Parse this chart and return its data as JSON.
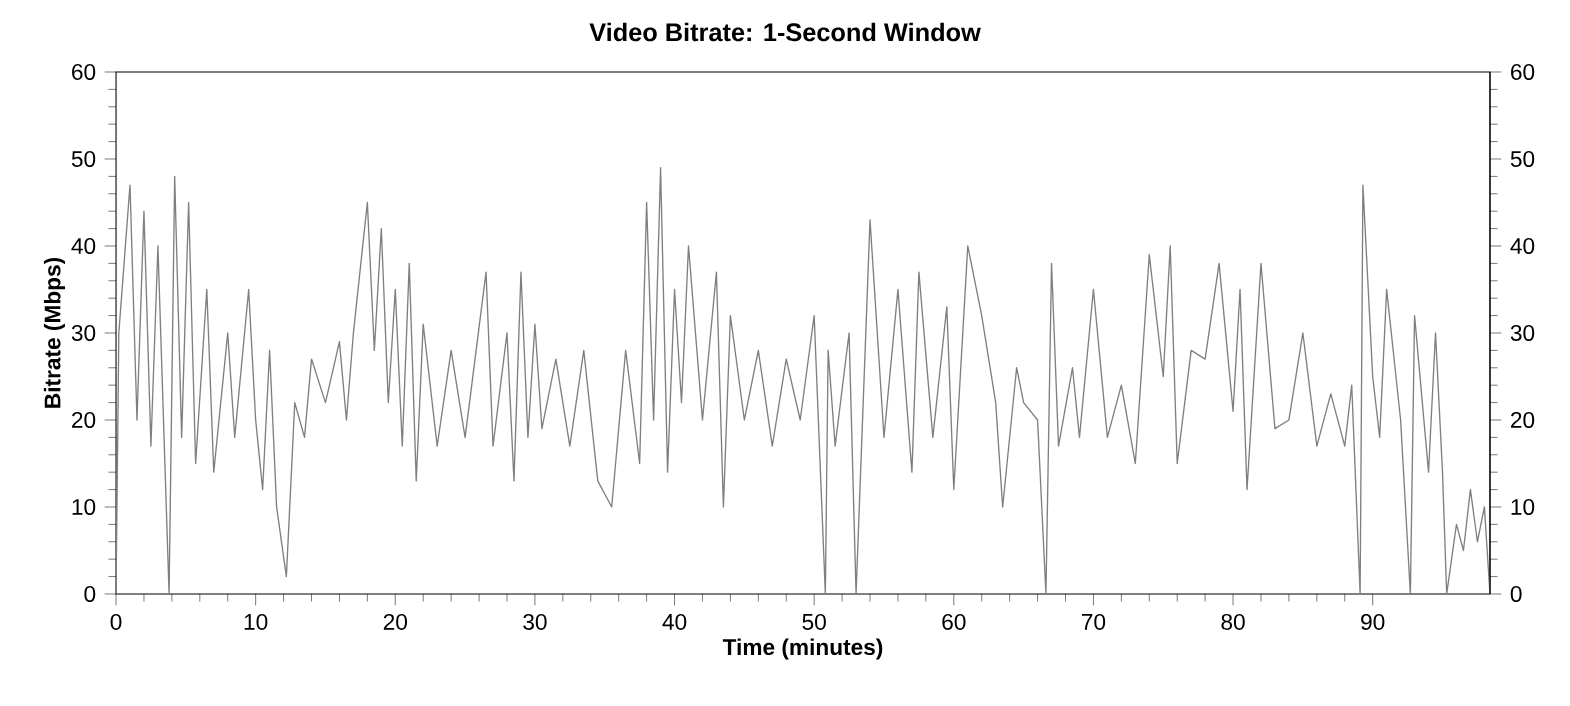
{
  "chart_data": {
    "type": "line",
    "title": "Video Bitrate: 1-Second Window",
    "xlabel": "Time (minutes)",
    "ylabel": "Bitrate (Mbps)",
    "x": [
      0,
      0.2,
      1,
      1.5,
      2,
      2.5,
      3,
      3.8,
      4.2,
      4.7,
      5.2,
      5.7,
      6.5,
      7,
      8,
      8.5,
      9.5,
      10,
      10.5,
      11,
      11.5,
      12.2,
      12.8,
      13.5,
      14,
      15,
      16,
      16.5,
      17,
      18,
      18.5,
      19,
      19.5,
      20,
      20.5,
      21,
      21.5,
      22,
      23,
      24,
      25,
      26.5,
      27,
      28,
      28.5,
      29,
      29.5,
      30,
      30.5,
      31.5,
      32.5,
      33.5,
      34.5,
      35.5,
      36.5,
      37.5,
      38,
      38.5,
      39,
      39.5,
      40,
      40.5,
      41,
      42,
      43,
      43.5,
      44,
      45,
      46,
      47,
      48,
      49,
      50,
      50.8,
      51,
      51.5,
      52.5,
      53,
      54,
      55,
      56,
      57,
      57.5,
      58.5,
      59.5,
      60,
      61,
      62,
      63,
      63.5,
      64.5,
      65,
      66,
      66.6,
      67,
      67.5,
      68.5,
      69,
      70,
      71,
      72,
      73,
      74,
      75,
      75.5,
      76,
      77,
      78,
      79,
      80,
      80.5,
      81,
      82,
      83,
      84,
      85,
      86,
      87,
      88,
      88.5,
      89.1,
      89.3,
      90,
      90.5,
      91,
      92,
      92.7,
      93,
      94,
      94.5,
      95,
      95.3,
      96,
      96.5,
      97,
      97.5,
      98,
      98.4
    ],
    "values": [
      0,
      30,
      47,
      20,
      44,
      17,
      40,
      0,
      48,
      18,
      45,
      15,
      35,
      14,
      30,
      18,
      35,
      20,
      12,
      28,
      10,
      2,
      22,
      18,
      27,
      22,
      29,
      20,
      30,
      45,
      28,
      42,
      22,
      35,
      17,
      38,
      13,
      31,
      17,
      28,
      18,
      37,
      17,
      30,
      13,
      37,
      18,
      31,
      19,
      27,
      17,
      28,
      13,
      10,
      28,
      15,
      45,
      20,
      49,
      14,
      35,
      22,
      40,
      20,
      37,
      10,
      32,
      20,
      28,
      17,
      27,
      20,
      32,
      0,
      28,
      17,
      30,
      0,
      43,
      18,
      35,
      14,
      37,
      18,
      33,
      12,
      40,
      32,
      22,
      10,
      26,
      22,
      20,
      0,
      38,
      17,
      26,
      18,
      35,
      18,
      24,
      15,
      39,
      25,
      40,
      15,
      28,
      27,
      38,
      21,
      35,
      12,
      38,
      19,
      20,
      30,
      17,
      23,
      17,
      24,
      0,
      47,
      25,
      18,
      35,
      20,
      0,
      32,
      14,
      30,
      14,
      0,
      8,
      5,
      12,
      6,
      10,
      0
    ],
    "color": "#7f7f7f",
    "xlim": [
      0,
      98.4
    ],
    "xticks": [
      0,
      10,
      20,
      30,
      40,
      50,
      60,
      70,
      80,
      90
    ],
    "ylim": [
      0,
      60
    ],
    "yticks": [
      0,
      10,
      20,
      30,
      40,
      50,
      60
    ],
    "y2lim": [
      0,
      60
    ],
    "y2ticks": [
      0,
      10,
      20,
      30,
      40,
      50,
      60
    ]
  }
}
